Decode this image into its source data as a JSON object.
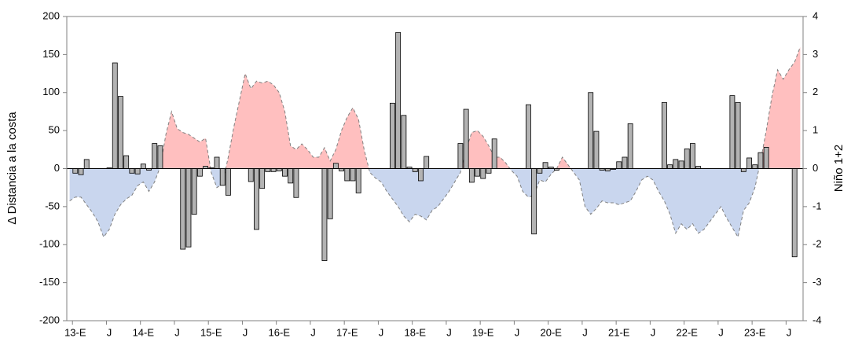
{
  "chart_data": {
    "type": "bar_area",
    "y_label": "Δ Distancia a la costa",
    "y2_label": "Niño 1+2",
    "categories": [
      null,
      "13-E",
      null,
      null,
      null,
      null,
      null,
      "J",
      null,
      null,
      null,
      null,
      null,
      "14-E",
      null,
      null,
      null,
      null,
      null,
      "J",
      null,
      null,
      null,
      null,
      null,
      "15-E",
      null,
      null,
      null,
      null,
      null,
      "J",
      null,
      null,
      null,
      null,
      null,
      "16-E",
      null,
      null,
      null,
      null,
      null,
      "J",
      null,
      null,
      null,
      null,
      null,
      "17-E",
      null,
      null,
      null,
      null,
      null,
      "J",
      null,
      null,
      null,
      null,
      null,
      "18-E",
      null,
      null,
      null,
      null,
      null,
      "J",
      null,
      null,
      null,
      null,
      null,
      "19-E",
      null,
      null,
      null,
      null,
      null,
      "J",
      null,
      null,
      null,
      null,
      null,
      "20-E",
      null,
      null,
      null,
      null,
      null,
      "J",
      null,
      null,
      null,
      null,
      null,
      "21-E",
      null,
      null,
      null,
      null,
      null,
      "J",
      null,
      null,
      null,
      null,
      null,
      "22-E",
      null,
      null,
      null,
      null,
      null,
      "J",
      null,
      null,
      null,
      null,
      null,
      "23-E",
      null,
      null,
      null,
      null,
      null,
      "J",
      null,
      null
    ],
    "series": [
      {
        "type": "bar",
        "color": "#b3b3b3",
        "values": [
          null,
          -6,
          -8,
          12,
          null,
          null,
          null,
          1,
          139,
          95,
          17,
          -6,
          -7,
          6,
          -2,
          33,
          30,
          null,
          null,
          null,
          -106,
          -103,
          -60,
          -10,
          3,
          1,
          15,
          -22,
          -35,
          null,
          null,
          null,
          -17,
          -80,
          -26,
          -4,
          -4,
          -3,
          -10,
          -19,
          -38,
          null,
          null,
          null,
          null,
          -121,
          -66,
          7,
          -3,
          -16,
          -16,
          -32,
          null,
          null,
          null,
          null,
          null,
          86,
          179,
          70,
          2,
          -4,
          -16,
          16,
          null,
          null,
          null,
          null,
          null,
          33,
          78,
          -18,
          -10,
          -13,
          -6,
          39,
          null,
          null,
          null,
          null,
          null,
          84,
          -86,
          -6,
          8,
          2,
          -2,
          null,
          null,
          null,
          null,
          null,
          100,
          49,
          -2,
          -3,
          -1,
          9,
          15,
          59,
          null,
          null,
          null,
          null,
          null,
          87,
          5,
          12,
          10,
          26,
          33,
          3,
          null,
          null,
          null,
          null,
          null,
          96,
          87,
          -4,
          14,
          5,
          21,
          28,
          null,
          null,
          null,
          null,
          -116,
          null
        ]
      },
      {
        "type": "area",
        "axis": "y2",
        "color_positive": "#ffbfbf",
        "color_negative": "#c9d6ee",
        "line_color": "#808080",
        "values": [
          -0.85,
          -0.75,
          -0.75,
          -0.95,
          -1.15,
          -1.4,
          -1.8,
          -1.6,
          -1.2,
          -0.95,
          -0.8,
          -0.7,
          -0.45,
          -0.35,
          -0.6,
          -0.35,
          0.05,
          0.9,
          1.5,
          1.05,
          0.95,
          0.9,
          0.8,
          0.7,
          0.8,
          -0.1,
          -0.5,
          -0.4,
          0.3,
          1.1,
          1.8,
          2.5,
          2.1,
          2.3,
          2.25,
          2.3,
          2.2,
          2.0,
          1.5,
          0.6,
          0.5,
          0.65,
          0.5,
          0.3,
          0.3,
          0.55,
          0.2,
          0.5,
          1.0,
          1.35,
          1.6,
          1.3,
          0.5,
          -0.1,
          -0.25,
          -0.35,
          -0.6,
          -0.8,
          -1.0,
          -1.25,
          -1.4,
          -1.2,
          -1.25,
          -1.35,
          -1.1,
          -1.0,
          -0.8,
          -0.6,
          -0.35,
          -0.1,
          0.5,
          0.95,
          1.0,
          0.85,
          0.6,
          0.3,
          0.3,
          0.15,
          -0.05,
          -0.2,
          -0.6,
          -0.75,
          -0.7,
          -0.3,
          -0.35,
          -0.15,
          0.0,
          0.3,
          0.1,
          -0.1,
          -0.3,
          -1.0,
          -1.2,
          -1.05,
          -0.85,
          -0.9,
          -0.9,
          -0.95,
          -0.9,
          -0.85,
          -0.6,
          -0.3,
          -0.2,
          -0.3,
          -0.6,
          -0.85,
          -1.2,
          -1.7,
          -1.45,
          -1.6,
          -1.45,
          -1.7,
          -1.6,
          -1.4,
          -1.2,
          -1.0,
          -1.3,
          -1.55,
          -1.8,
          -1.1,
          -0.9,
          -0.5,
          0.2,
          1.0,
          1.9,
          2.6,
          2.35,
          2.6,
          2.8,
          3.2
        ]
      }
    ],
    "ylim": [
      -200,
      200
    ],
    "yticks": [
      -200,
      -150,
      -100,
      -50,
      0,
      50,
      100,
      150,
      200
    ],
    "y2lim": [
      -4,
      4
    ],
    "y2ticks": [
      -4,
      -3,
      -2,
      -1,
      0,
      1,
      2,
      3,
      4
    ]
  }
}
